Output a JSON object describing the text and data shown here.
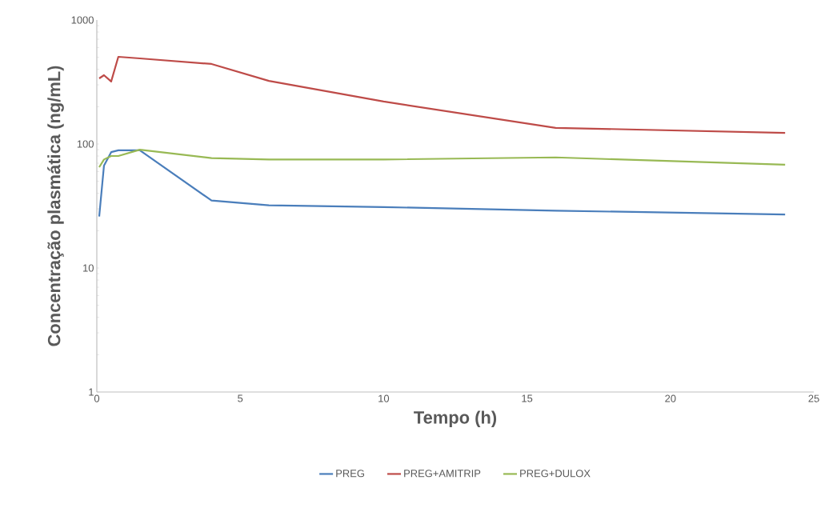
{
  "chart_data": {
    "type": "line",
    "xlabel": "Tempo (h)",
    "ylabel": "Concentração plasmática (ng/mL)",
    "x": [
      0.083,
      0.25,
      0.5,
      0.75,
      1.5,
      4,
      6,
      10,
      16,
      24
    ],
    "series": [
      {
        "name": "PREG",
        "color": "#4a7ebb",
        "values": [
          26,
          67,
          86,
          89,
          89,
          35,
          32,
          31,
          29,
          27
        ]
      },
      {
        "name": "PREG+AMITRIP",
        "color": "#be4b48",
        "values": [
          338,
          359,
          319,
          505,
          490,
          442,
          323,
          220,
          135,
          123
        ]
      },
      {
        "name": "PREG+DULOX",
        "color": "#98b954",
        "values": [
          65,
          75,
          80,
          80,
          90,
          77,
          75,
          75,
          78,
          68
        ]
      }
    ],
    "xlim": [
      0,
      25
    ],
    "xticks": [
      0,
      5,
      10,
      15,
      20,
      25
    ],
    "ylim": [
      1,
      1000
    ],
    "yticks": [
      1,
      10,
      100,
      1000
    ],
    "log": "y",
    "grid": false,
    "legend": "bottom",
    "marker": "none",
    "line_style": "solid"
  }
}
